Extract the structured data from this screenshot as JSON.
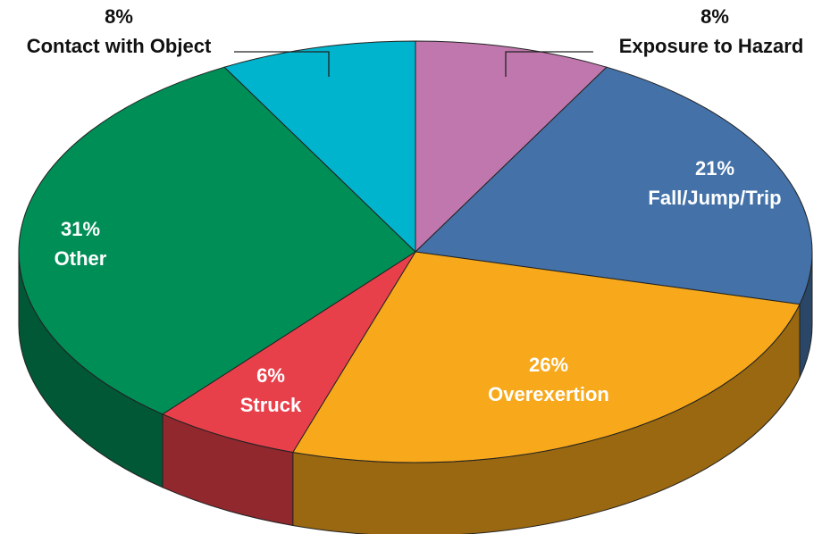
{
  "chart_data": {
    "type": "pie",
    "categories": [
      "Exposure to Hazard",
      "Fall/Jump/Trip",
      "Overexertion",
      "Struck",
      "Other",
      "Contact with Object"
    ],
    "values": [
      8,
      21,
      26,
      6,
      31,
      8
    ],
    "value_labels": [
      "8%",
      "21%",
      "26%",
      "6%",
      "31%",
      "8%"
    ],
    "colors": [
      "#c077ad",
      "#4472a8",
      "#f7a81b",
      "#e8404a",
      "#008e57",
      "#00b4cd"
    ]
  }
}
